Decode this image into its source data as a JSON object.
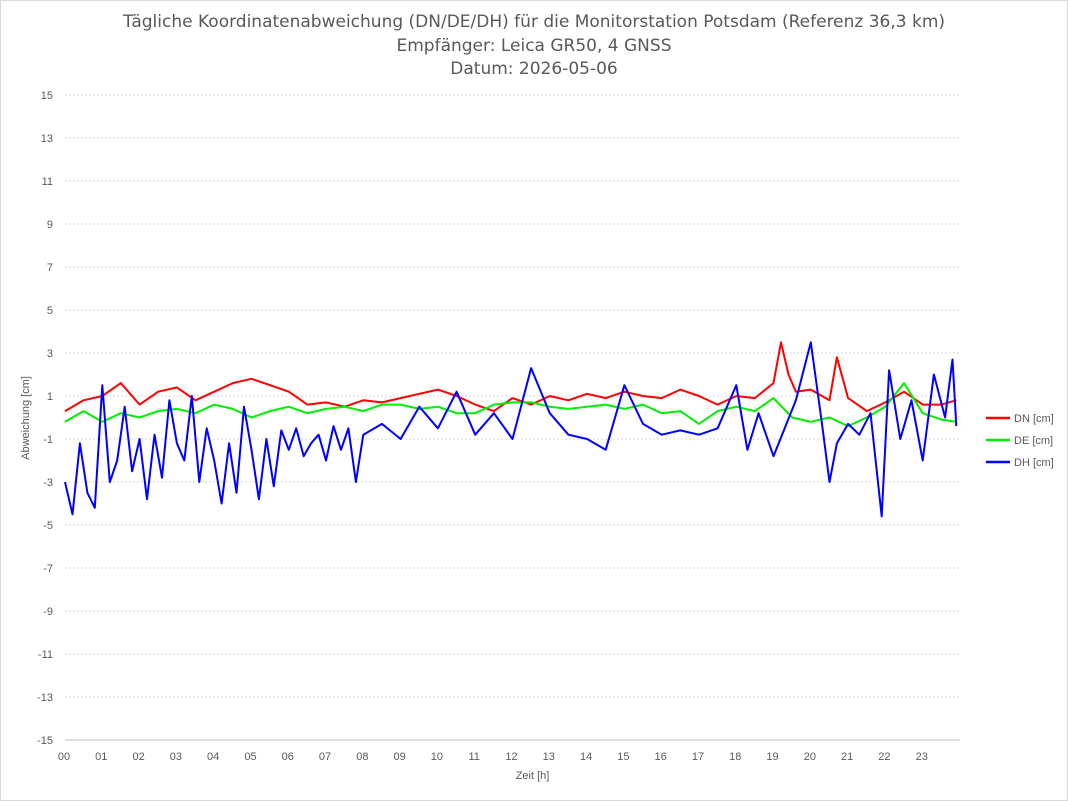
{
  "chart_data": {
    "type": "line",
    "title": "Tägliche Koordinatenabweichung (DN/DE/DH) für die Monitorstation Potsdam (Referenz 36,3 km)",
    "subtitle": "Empfänger: Leica GR50, 4 GNSS",
    "date_line": "Datum: 2026-05-06",
    "xlabel": "Zeit [h]",
    "ylabel": "Abweichung [cm]",
    "xlim": [
      0,
      24
    ],
    "ylim": [
      -15,
      15
    ],
    "x_ticks": [
      "00",
      "01",
      "02",
      "03",
      "04",
      "05",
      "06",
      "07",
      "08",
      "09",
      "10",
      "11",
      "12",
      "13",
      "14",
      "15",
      "16",
      "17",
      "18",
      "19",
      "20",
      "21",
      "22",
      "23"
    ],
    "y_ticks": [
      "15",
      "13",
      "11",
      "9",
      "7",
      "5",
      "3",
      "1",
      "-1",
      "-3",
      "-5",
      "-7",
      "-9",
      "-11",
      "-13",
      "-15"
    ],
    "grid": "horizontal dotted",
    "legend_position": "right",
    "series": [
      {
        "name": "DN [cm]",
        "color": "#ff0000",
        "x": [
          0,
          0.5,
          1,
          1.5,
          2,
          2.5,
          3,
          3.5,
          4,
          4.5,
          5,
          5.5,
          6,
          6.5,
          7,
          7.5,
          8,
          8.5,
          9,
          9.5,
          10,
          10.5,
          11,
          11.5,
          12,
          12.5,
          13,
          13.5,
          14,
          14.5,
          15,
          15.5,
          16,
          16.5,
          17,
          17.5,
          18,
          18.5,
          19,
          19.2,
          19.4,
          19.6,
          20,
          20.5,
          20.7,
          21,
          21.5,
          22,
          22.5,
          23,
          23.5,
          23.9
        ],
        "y": [
          0.3,
          0.8,
          1.0,
          1.6,
          0.6,
          1.2,
          1.4,
          0.8,
          1.2,
          1.6,
          1.8,
          1.5,
          1.2,
          0.6,
          0.7,
          0.5,
          0.8,
          0.7,
          0.9,
          1.1,
          1.3,
          1.0,
          0.6,
          0.3,
          0.9,
          0.6,
          1.0,
          0.8,
          1.1,
          0.9,
          1.2,
          1.0,
          0.9,
          1.3,
          1.0,
          0.6,
          1.0,
          0.9,
          1.6,
          3.5,
          2.0,
          1.2,
          1.3,
          0.8,
          2.8,
          0.9,
          0.3,
          0.7,
          1.2,
          0.6,
          0.6,
          0.8
        ]
      },
      {
        "name": "DE [cm]",
        "color": "#00ee00",
        "x": [
          0,
          0.5,
          1,
          1.5,
          2,
          2.5,
          3,
          3.5,
          4,
          4.5,
          5,
          5.5,
          6,
          6.5,
          7,
          7.5,
          8,
          8.5,
          9,
          9.5,
          10,
          10.5,
          11,
          11.5,
          12,
          12.5,
          13,
          13.5,
          14,
          14.5,
          15,
          15.5,
          16,
          16.5,
          17,
          17.5,
          18,
          18.5,
          19,
          19.5,
          20,
          20.5,
          21,
          21.5,
          22,
          22.5,
          23,
          23.5,
          23.9
        ],
        "y": [
          -0.2,
          0.3,
          -0.2,
          0.2,
          0.0,
          0.3,
          0.4,
          0.2,
          0.6,
          0.4,
          0.0,
          0.3,
          0.5,
          0.2,
          0.4,
          0.5,
          0.3,
          0.6,
          0.6,
          0.4,
          0.5,
          0.2,
          0.2,
          0.6,
          0.7,
          0.7,
          0.5,
          0.4,
          0.5,
          0.6,
          0.4,
          0.6,
          0.2,
          0.3,
          -0.3,
          0.3,
          0.5,
          0.3,
          0.9,
          0.0,
          -0.2,
          0.0,
          -0.4,
          0.0,
          0.5,
          1.6,
          0.2,
          -0.1,
          -0.2
        ]
      },
      {
        "name": "DH [cm]",
        "color": "#0000ff",
        "x": [
          0,
          0.2,
          0.4,
          0.6,
          0.8,
          1,
          1.2,
          1.4,
          1.6,
          1.8,
          2,
          2.2,
          2.4,
          2.6,
          2.8,
          3,
          3.2,
          3.4,
          3.6,
          3.8,
          4,
          4.2,
          4.4,
          4.6,
          4.8,
          5,
          5.2,
          5.4,
          5.6,
          5.8,
          6,
          6.2,
          6.4,
          6.6,
          6.8,
          7,
          7.2,
          7.4,
          7.6,
          7.8,
          8,
          8.5,
          9,
          9.5,
          10,
          10.5,
          11,
          11.5,
          12,
          12.5,
          13,
          13.5,
          14,
          14.5,
          15,
          15.5,
          16,
          16.5,
          17,
          17.5,
          18,
          18.3,
          18.6,
          19,
          19.3,
          19.6,
          20,
          20.3,
          20.5,
          20.7,
          21,
          21.3,
          21.6,
          21.9,
          22.1,
          22.4,
          22.7,
          23,
          23.3,
          23.6,
          23.8,
          23.9
        ],
        "y": [
          -3.0,
          -4.5,
          -1.2,
          -3.5,
          -4.2,
          1.5,
          -3.0,
          -2.0,
          0.5,
          -2.5,
          -1.0,
          -3.8,
          -0.8,
          -2.8,
          0.8,
          -1.2,
          -2.0,
          1.0,
          -3.0,
          -0.5,
          -2.0,
          -4.0,
          -1.2,
          -3.5,
          0.5,
          -1.5,
          -3.8,
          -1.0,
          -3.2,
          -0.6,
          -1.5,
          -0.5,
          -1.8,
          -1.2,
          -0.8,
          -2.0,
          -0.4,
          -1.5,
          -0.5,
          -3.0,
          -0.8,
          -0.3,
          -1.0,
          0.5,
          -0.5,
          1.2,
          -0.8,
          0.2,
          -1.0,
          2.3,
          0.2,
          -0.8,
          -1.0,
          -1.5,
          1.5,
          -0.3,
          -0.8,
          -0.6,
          -0.8,
          -0.5,
          1.5,
          -1.5,
          0.2,
          -1.8,
          -0.5,
          0.8,
          3.5,
          -0.3,
          -3.0,
          -1.2,
          -0.3,
          -0.8,
          0.2,
          -4.6,
          2.2,
          -1.0,
          0.8,
          -2.0,
          2.0,
          0.0,
          2.7,
          -0.4
        ]
      }
    ]
  }
}
